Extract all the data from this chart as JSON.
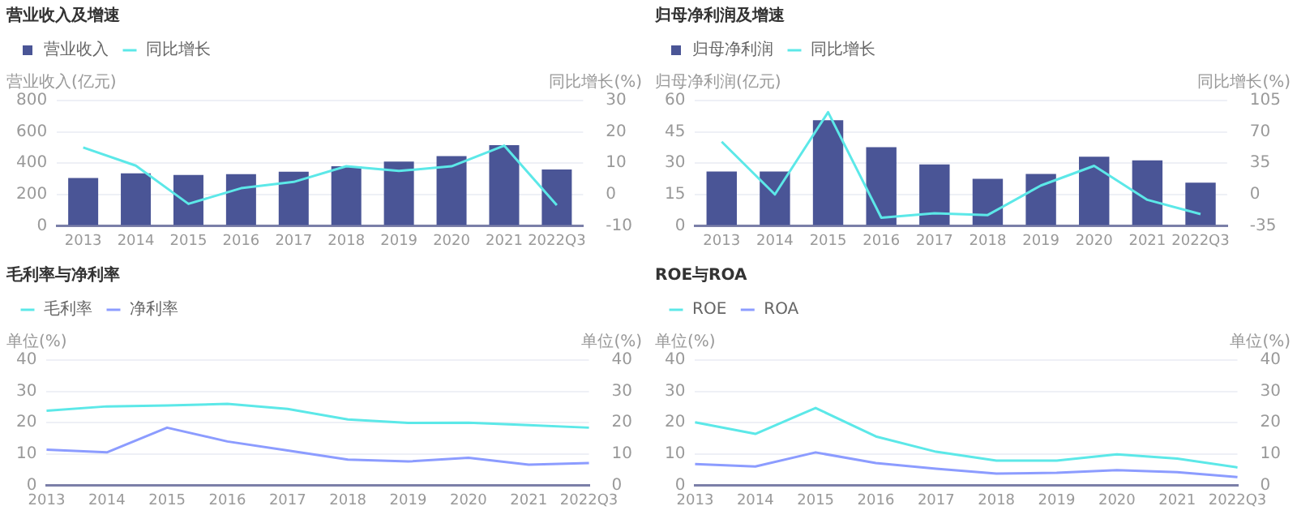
{
  "chart_data": [
    {
      "type": "bar",
      "title": "营业收入及增速",
      "categories": [
        "2013",
        "2014",
        "2015",
        "2016",
        "2017",
        "2018",
        "2019",
        "2020",
        "2021",
        "2022Q3"
      ],
      "ylabel": "营业收入(亿元)",
      "y2label": "同比增长(%)",
      "ylim": [
        0,
        800
      ],
      "yticks": [
        0,
        200,
        400,
        600,
        800
      ],
      "y2lim": [
        -10,
        30
      ],
      "y2ticks": [
        -10,
        0,
        10,
        20,
        30
      ],
      "grid": "y",
      "legend": "top left",
      "marker": "none",
      "series": [
        {
          "name": "营业收入",
          "color": "#4a5596",
          "values": [
            305,
            335,
            325,
            330,
            345,
            380,
            410,
            445,
            515,
            360
          ]
        },
        {
          "name": "同比增长",
          "type": "line",
          "axis": "y2",
          "color": "#5ce8e8",
          "values": [
            15,
            9.2,
            -3,
            2,
            4,
            9,
            7.5,
            9,
            15.6,
            -3.4
          ]
        }
      ]
    },
    {
      "type": "bar",
      "title": "归母净利润及增速",
      "categories": [
        "2013",
        "2014",
        "2015",
        "2016",
        "2017",
        "2018",
        "2019",
        "2020",
        "2021",
        "2022Q3"
      ],
      "ylabel": "归母净利润(亿元)",
      "y2label": "同比增长(%)",
      "ylim": [
        0,
        60
      ],
      "yticks": [
        0,
        15,
        30,
        45,
        60
      ],
      "y2lim": [
        -35,
        105
      ],
      "y2ticks": [
        -35,
        0,
        35,
        70,
        105
      ],
      "grid": "y",
      "legend": "top left",
      "marker": "none",
      "series": [
        {
          "name": "归母净利润",
          "color": "#4a5596",
          "values": [
            26,
            26,
            50.6,
            37.7,
            29.4,
            22.5,
            24.8,
            33.1,
            31.3,
            20.7
          ]
        },
        {
          "name": "同比增长",
          "type": "line",
          "axis": "y2",
          "color": "#5ce8e8",
          "values": [
            59,
            0,
            92,
            -26,
            -21,
            -23,
            10,
            32,
            -6,
            -22
          ]
        }
      ]
    },
    {
      "type": "line",
      "title": "毛利率与净利率",
      "categories": [
        "2013",
        "2014",
        "2015",
        "2016",
        "2017",
        "2018",
        "2019",
        "2020",
        "2021",
        "2022Q3"
      ],
      "ylabel": "单位(%)",
      "y2label": "单位(%)",
      "ylim": [
        0,
        40
      ],
      "yticks": [
        0,
        10,
        20,
        30,
        40
      ],
      "y2lim": [
        0,
        40
      ],
      "y2ticks": [
        0,
        10,
        20,
        30,
        40
      ],
      "grid": "y",
      "legend": "top left",
      "marker": "none",
      "series": [
        {
          "name": "毛利率",
          "color": "#5ce8e8",
          "values": [
            23.8,
            25.2,
            25.5,
            26,
            24.4,
            21,
            19.9,
            20,
            19.2,
            18.4
          ]
        },
        {
          "name": "净利率",
          "color": "#8c9cff",
          "values": [
            11.4,
            10.5,
            18.4,
            14,
            11.1,
            8.2,
            7.6,
            8.8,
            6.6,
            7.1
          ]
        }
      ]
    },
    {
      "type": "line",
      "title": "ROE与ROA",
      "categories": [
        "2013",
        "2014",
        "2015",
        "2016",
        "2017",
        "2018",
        "2019",
        "2020",
        "2021",
        "2022Q3"
      ],
      "ylabel": "单位(%)",
      "y2label": "单位(%)",
      "ylim": [
        0,
        40
      ],
      "yticks": [
        0,
        10,
        20,
        30,
        40
      ],
      "y2lim": [
        0,
        40
      ],
      "y2ticks": [
        0,
        10,
        20,
        30,
        40
      ],
      "grid": "y",
      "legend": "top left",
      "marker": "none",
      "series": [
        {
          "name": "ROE",
          "color": "#5ce8e8",
          "values": [
            20.1,
            16.4,
            24.7,
            15.6,
            10.7,
            7.9,
            7.9,
            9.9,
            8.5,
            5.7
          ]
        },
        {
          "name": "ROA",
          "color": "#8c9cff",
          "values": [
            6.8,
            6,
            10.5,
            7.1,
            5.3,
            3.7,
            4,
            4.8,
            4.2,
            2.6
          ]
        }
      ]
    }
  ]
}
